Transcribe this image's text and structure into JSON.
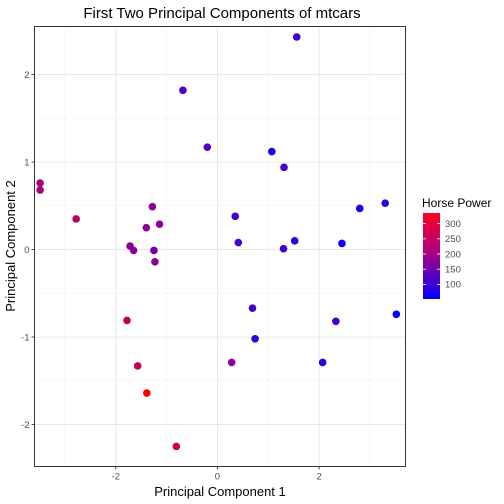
{
  "chart_data": {
    "type": "scatter",
    "title": "First Two Principal Components of mtcars",
    "xlabel": "Principal Component 1",
    "ylabel": "Principal Component 2",
    "xlim": [
      -3.6,
      3.7
    ],
    "ylim": [
      -2.48,
      2.55
    ],
    "x_ticks": [
      -2,
      0,
      2
    ],
    "x_tick_labels": [
      "-2",
      "0",
      "2"
    ],
    "y_ticks": [
      -2,
      -1,
      0,
      1,
      2
    ],
    "y_tick_labels": [
      "-2",
      "-1",
      "0",
      "1",
      "2"
    ],
    "grid": true,
    "legend": {
      "title": "Horse Power",
      "placement": "right",
      "min": 52,
      "max": 335,
      "ticks": [
        100,
        150,
        200,
        250,
        300
      ],
      "tick_labels": [
        "100",
        "150",
        "200",
        "250",
        "300"
      ],
      "low_color": "#0000ff",
      "high_color": "#ff0000"
    },
    "points": [
      {
        "x": 1.56,
        "y": 2.43,
        "hp": 110
      },
      {
        "x": -0.68,
        "y": 1.82,
        "hp": 123
      },
      {
        "x": -0.2,
        "y": 1.17,
        "hp": 123
      },
      {
        "x": 1.07,
        "y": 1.12,
        "hp": 66
      },
      {
        "x": 1.31,
        "y": 0.94,
        "hp": 110
      },
      {
        "x": -3.49,
        "y": 0.76,
        "hp": 205
      },
      {
        "x": -3.49,
        "y": 0.68,
        "hp": 215
      },
      {
        "x": 2.8,
        "y": 0.47,
        "hp": 66
      },
      {
        "x": 3.3,
        "y": 0.53,
        "hp": 91
      },
      {
        "x": -2.78,
        "y": 0.35,
        "hp": 230
      },
      {
        "x": -1.28,
        "y": 0.49,
        "hp": 180
      },
      {
        "x": 0.35,
        "y": 0.38,
        "hp": 113
      },
      {
        "x": -1.14,
        "y": 0.29,
        "hp": 180
      },
      {
        "x": -1.4,
        "y": 0.25,
        "hp": 175
      },
      {
        "x": -1.72,
        "y": 0.04,
        "hp": 175
      },
      {
        "x": -1.65,
        "y": -0.01,
        "hp": 175
      },
      {
        "x": -1.25,
        "y": -0.01,
        "hp": 150
      },
      {
        "x": -1.23,
        "y": -0.14,
        "hp": 180
      },
      {
        "x": 0.41,
        "y": 0.08,
        "hp": 110
      },
      {
        "x": 1.52,
        "y": 0.1,
        "hp": 97
      },
      {
        "x": 1.3,
        "y": 0.01,
        "hp": 105
      },
      {
        "x": 2.45,
        "y": 0.07,
        "hp": 65
      },
      {
        "x": 3.52,
        "y": -0.74,
        "hp": 52
      },
      {
        "x": 0.69,
        "y": -0.67,
        "hp": 109
      },
      {
        "x": 2.33,
        "y": -0.82,
        "hp": 113
      },
      {
        "x": -1.78,
        "y": -0.81,
        "hp": 245
      },
      {
        "x": 0.74,
        "y": -1.02,
        "hp": 93
      },
      {
        "x": -1.57,
        "y": -1.33,
        "hp": 245
      },
      {
        "x": 0.28,
        "y": -1.29,
        "hp": 175
      },
      {
        "x": 2.07,
        "y": -1.29,
        "hp": 95
      },
      {
        "x": -1.39,
        "y": -1.64,
        "hp": 335
      },
      {
        "x": -0.81,
        "y": -2.25,
        "hp": 264
      }
    ]
  }
}
